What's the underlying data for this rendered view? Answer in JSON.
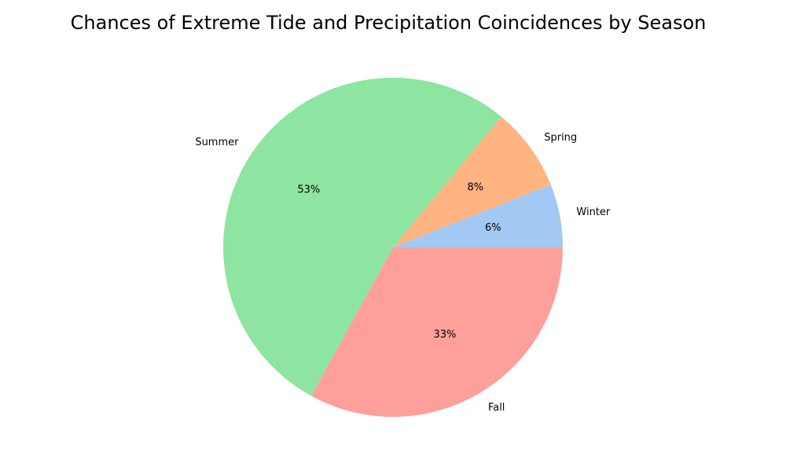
{
  "chart_data": {
    "type": "pie",
    "title": "Chances of Extreme Tide and Precipitation Coincidences by Season",
    "categories": [
      "Winter",
      "Spring",
      "Summer",
      "Fall"
    ],
    "values": [
      6,
      8,
      53,
      33
    ],
    "value_labels": [
      "6%",
      "8%",
      "53%",
      "33%"
    ],
    "colors": [
      "#a1c9f4",
      "#ffb482",
      "#8de5a1",
      "#ff9f9b"
    ],
    "start_angle_deg": 0,
    "direction": "counterclockwise",
    "legend": "none"
  }
}
